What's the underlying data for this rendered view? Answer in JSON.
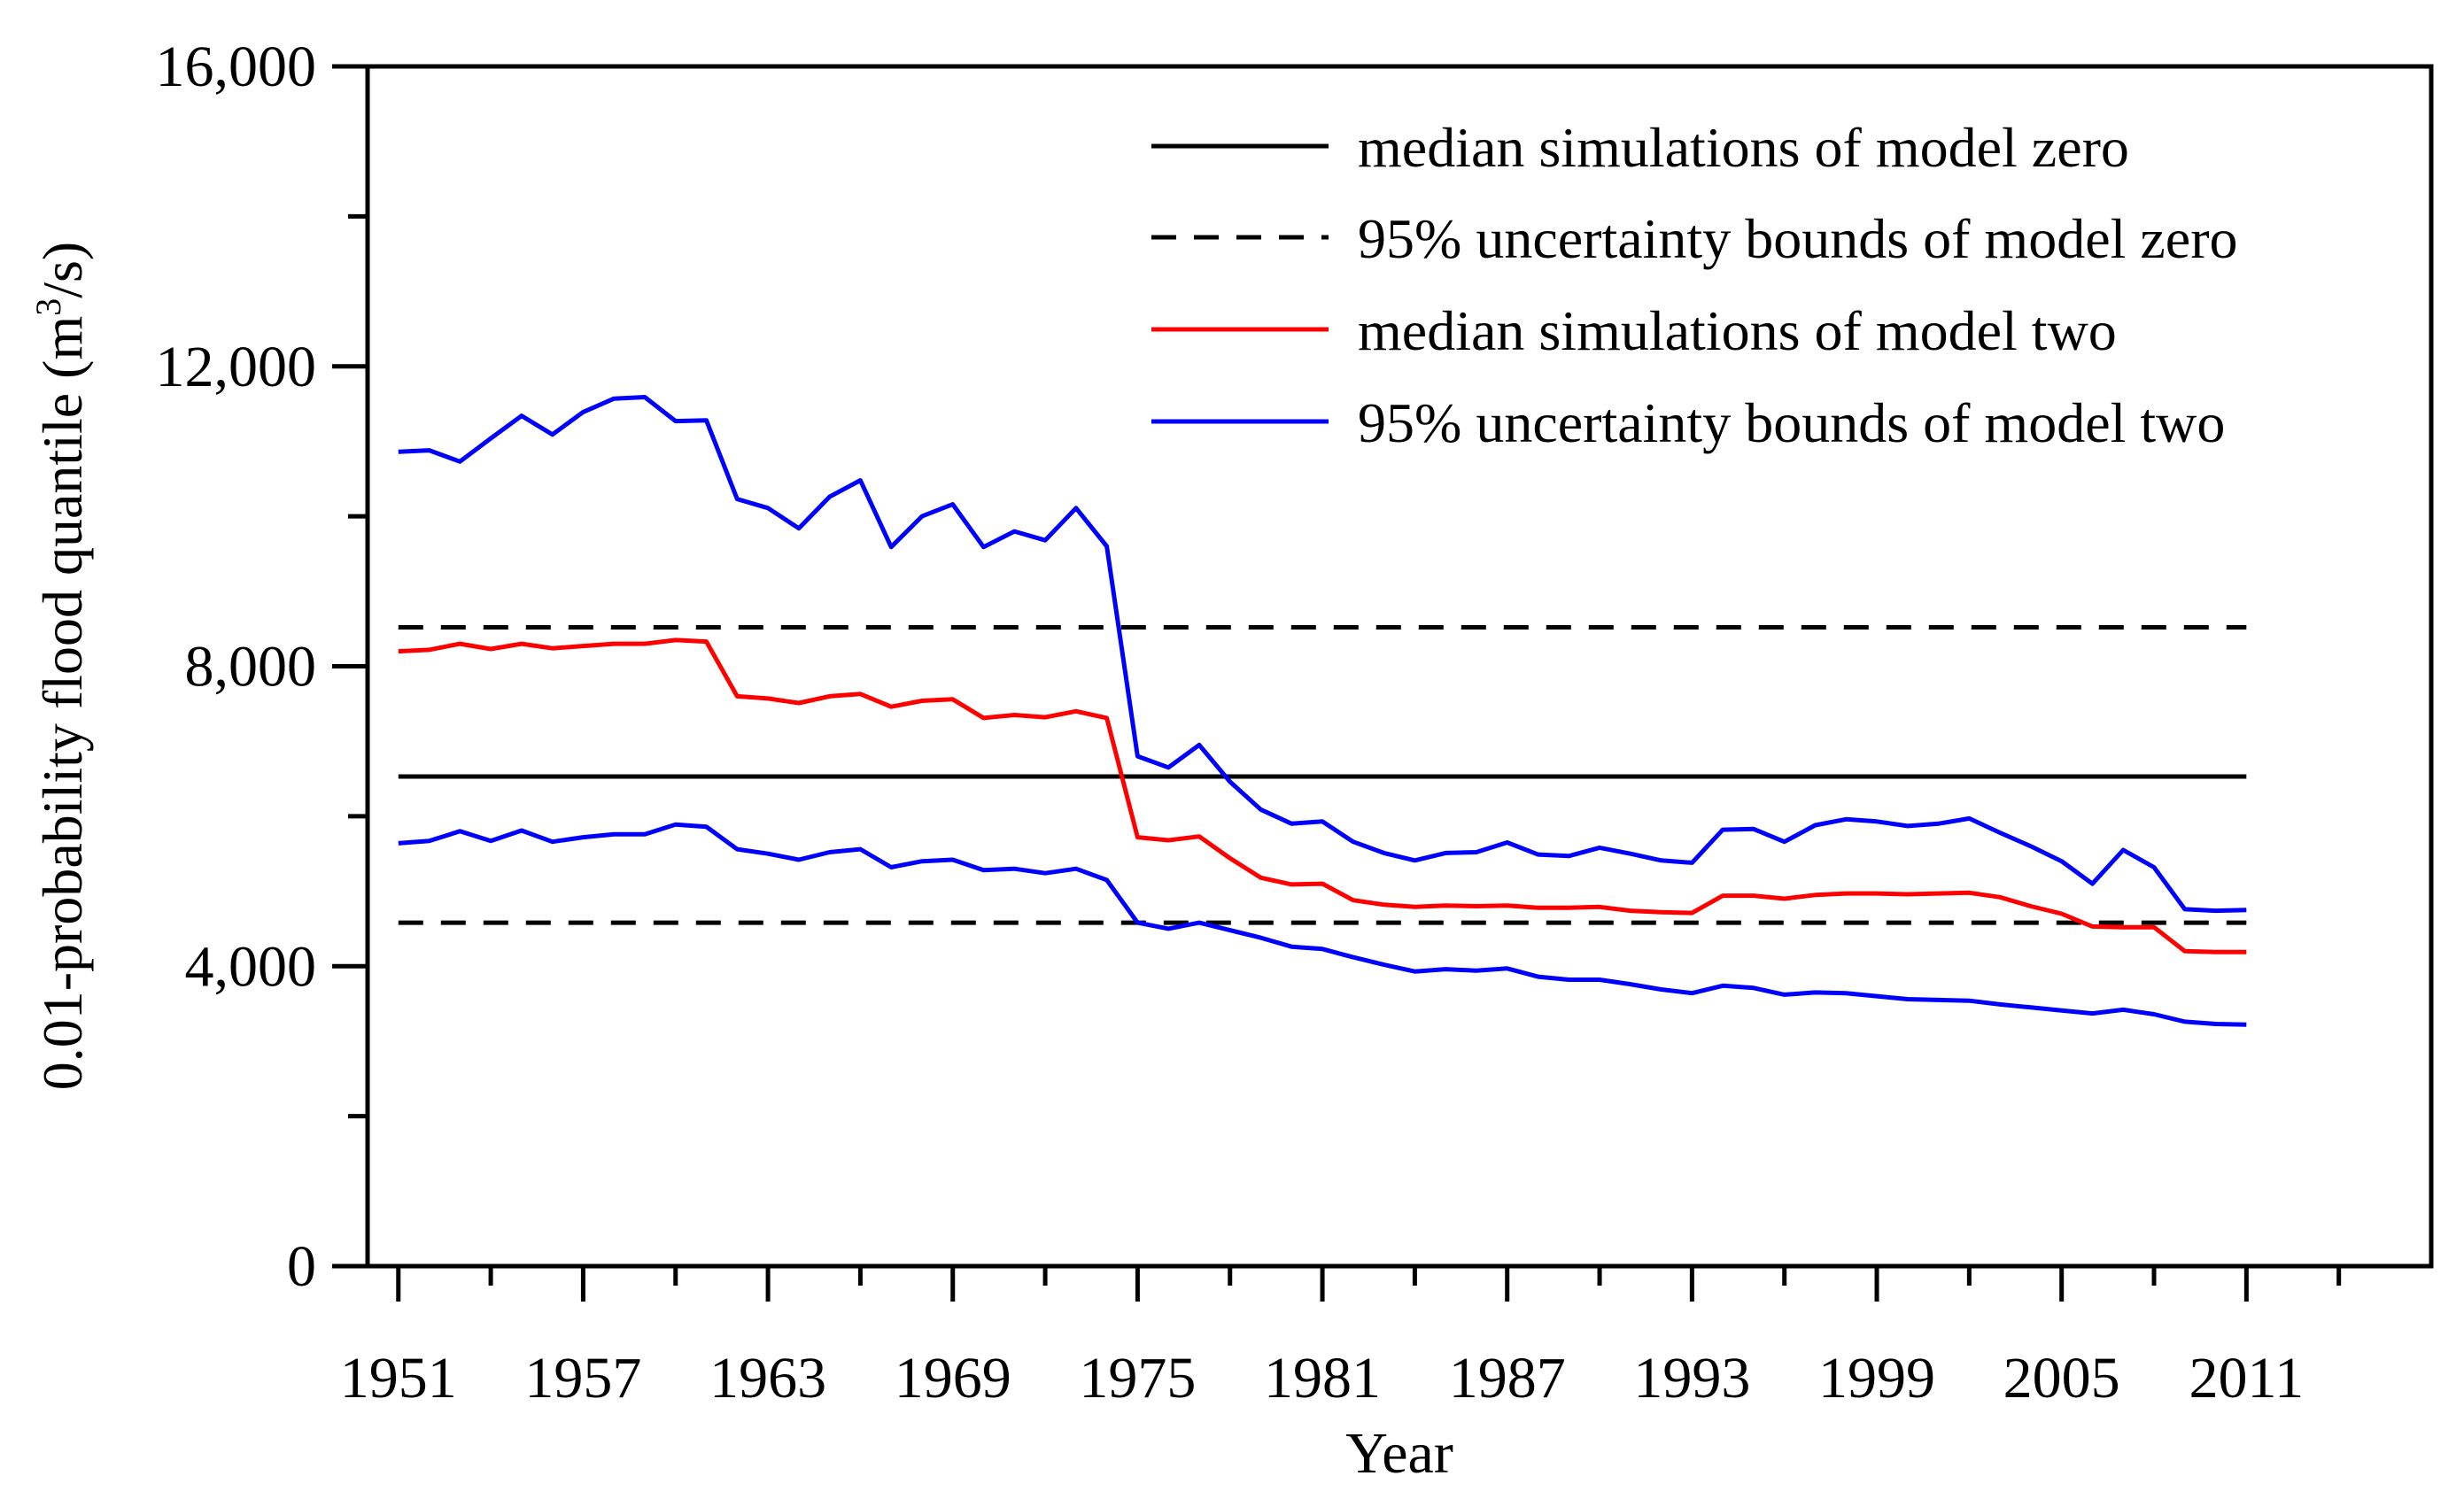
{
  "chart_data": {
    "type": "line",
    "title": "",
    "xlabel": "Year",
    "ylabel_main": "0.01-probability flood quantile (m",
    "ylabel_sup": "3",
    "ylabel_end": "/s)",
    "xlim": [
      1950,
      2017
    ],
    "ylim": [
      0,
      16000
    ],
    "x_ticks": [
      1951,
      1957,
      1963,
      1969,
      1975,
      1981,
      1987,
      1993,
      1999,
      2005,
      2011
    ],
    "x_tick_labels": [
      "1951",
      "1957",
      "1963",
      "1969",
      "1975",
      "1981",
      "1987",
      "1993",
      "1999",
      "2005",
      "2011"
    ],
    "y_ticks": [
      0,
      4000,
      8000,
      12000,
      16000
    ],
    "y_tick_labels": [
      "0",
      "4,000",
      "8,000",
      "12,000",
      "16,000"
    ],
    "grid": false,
    "legend_position": "top-right",
    "x": [
      1951,
      1952,
      1953,
      1954,
      1955,
      1956,
      1957,
      1958,
      1959,
      1960,
      1961,
      1962,
      1963,
      1964,
      1965,
      1966,
      1967,
      1968,
      1969,
      1970,
      1971,
      1972,
      1973,
      1974,
      1975,
      1976,
      1977,
      1978,
      1979,
      1980,
      1981,
      1982,
      1983,
      1984,
      1985,
      1986,
      1987,
      1988,
      1989,
      1990,
      1991,
      1992,
      1993,
      1994,
      1995,
      1996,
      1997,
      1998,
      1999,
      2000,
      2001,
      2002,
      2003,
      2004,
      2005,
      2006,
      2007,
      2008,
      2009,
      2010,
      2011
    ],
    "series": [
      {
        "name": "median simulations of model zero",
        "color": "#000000",
        "style": "solid",
        "values": [
          6530,
          6530,
          6530,
          6530,
          6530,
          6530,
          6530,
          6530,
          6530,
          6530,
          6530,
          6530,
          6530,
          6530,
          6530,
          6530,
          6530,
          6530,
          6530,
          6530,
          6530,
          6530,
          6530,
          6530,
          6530,
          6530,
          6530,
          6530,
          6530,
          6530,
          6530,
          6530,
          6530,
          6530,
          6530,
          6530,
          6530,
          6530,
          6530,
          6530,
          6530,
          6530,
          6530,
          6530,
          6530,
          6530,
          6530,
          6530,
          6530,
          6530,
          6530,
          6530,
          6530,
          6530,
          6530,
          6530,
          6530,
          6530,
          6530,
          6530,
          6530
        ]
      },
      {
        "name": "95% uncertainty bounds of model zero",
        "color": "#000000",
        "style": "dashed",
        "values": [
          8520,
          8520,
          8520,
          8520,
          8520,
          8520,
          8520,
          8520,
          8520,
          8520,
          8520,
          8520,
          8520,
          8520,
          8520,
          8520,
          8520,
          8520,
          8520,
          8520,
          8520,
          8520,
          8520,
          8520,
          8520,
          8520,
          8520,
          8520,
          8520,
          8520,
          8520,
          8520,
          8520,
          8520,
          8520,
          8520,
          8520,
          8520,
          8520,
          8520,
          8520,
          8520,
          8520,
          8520,
          8520,
          8520,
          8520,
          8520,
          8520,
          8520,
          8520,
          8520,
          8520,
          8520,
          8520,
          8520,
          8520,
          8520,
          8520,
          8520,
          8520
        ],
        "values_lower": [
          4580,
          4580,
          4580,
          4580,
          4580,
          4580,
          4580,
          4580,
          4580,
          4580,
          4580,
          4580,
          4580,
          4580,
          4580,
          4580,
          4580,
          4580,
          4580,
          4580,
          4580,
          4580,
          4580,
          4580,
          4580,
          4580,
          4580,
          4580,
          4580,
          4580,
          4580,
          4580,
          4580,
          4580,
          4580,
          4580,
          4580,
          4580,
          4580,
          4580,
          4580,
          4580,
          4580,
          4580,
          4580,
          4580,
          4580,
          4580,
          4580,
          4580,
          4580,
          4580,
          4580,
          4580,
          4580,
          4580,
          4580,
          4580,
          4580,
          4580,
          4580
        ]
      },
      {
        "name": "median simulations of model two",
        "color": "#ff0000",
        "style": "solid",
        "values": [
          8200,
          8220,
          8300,
          8230,
          8300,
          8240,
          8270,
          8300,
          8300,
          8350,
          8330,
          7600,
          7570,
          7510,
          7600,
          7630,
          7460,
          7540,
          7560,
          7310,
          7350,
          7320,
          7400,
          7310,
          5720,
          5680,
          5730,
          5440,
          5180,
          5090,
          5100,
          4880,
          4820,
          4790,
          4810,
          4800,
          4810,
          4780,
          4780,
          4790,
          4740,
          4720,
          4710,
          4940,
          4940,
          4900,
          4950,
          4970,
          4970,
          4960,
          4970,
          4980,
          4920,
          4800,
          4700,
          4530,
          4520,
          4520,
          4200,
          4190,
          4190
        ]
      },
      {
        "name": "95% uncertainty bounds of model two",
        "color": "#0000ff",
        "style": "solid",
        "values": [
          10860,
          10880,
          10730,
          11040,
          11340,
          11090,
          11390,
          11570,
          11590,
          11270,
          11280,
          10230,
          10110,
          9840,
          10260,
          10480,
          9590,
          10000,
          10160,
          9590,
          9800,
          9680,
          10110,
          9600,
          6800,
          6650,
          6950,
          6460,
          6090,
          5900,
          5930,
          5660,
          5510,
          5410,
          5510,
          5520,
          5650,
          5490,
          5470,
          5580,
          5500,
          5410,
          5380,
          5820,
          5830,
          5660,
          5880,
          5960,
          5930,
          5870,
          5900,
          5970,
          5780,
          5600,
          5400,
          5100,
          5550,
          5320,
          4760,
          4740,
          4750
        ],
        "values_lower": [
          5640,
          5670,
          5800,
          5670,
          5810,
          5660,
          5720,
          5760,
          5760,
          5890,
          5860,
          5560,
          5500,
          5420,
          5520,
          5560,
          5320,
          5400,
          5420,
          5280,
          5300,
          5240,
          5300,
          5150,
          4580,
          4500,
          4580,
          4480,
          4380,
          4260,
          4230,
          4120,
          4020,
          3930,
          3960,
          3940,
          3970,
          3860,
          3820,
          3820,
          3760,
          3690,
          3640,
          3740,
          3710,
          3620,
          3650,
          3640,
          3600,
          3560,
          3550,
          3540,
          3490,
          3450,
          3410,
          3370,
          3420,
          3360,
          3260,
          3230,
          3220
        ]
      }
    ]
  }
}
